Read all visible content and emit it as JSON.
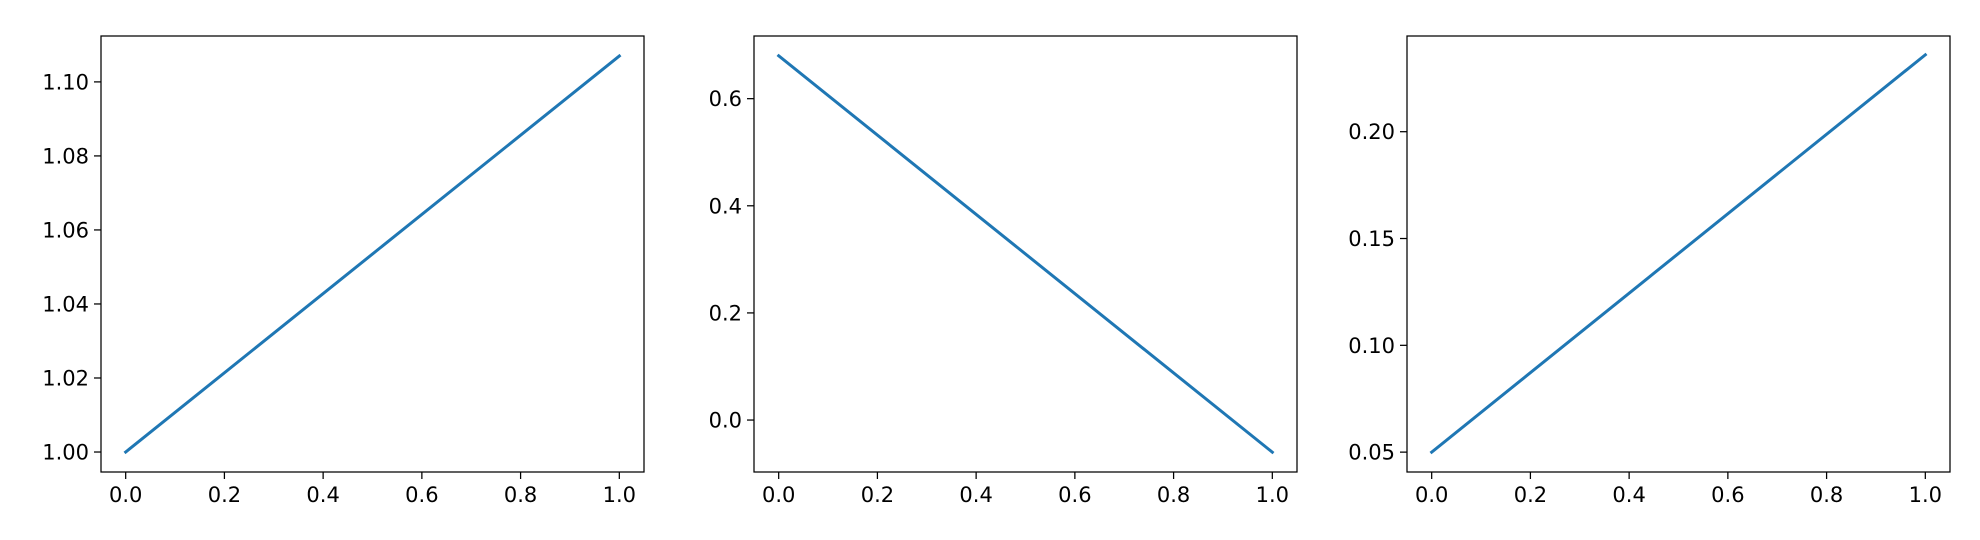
{
  "chart_data": [
    {
      "type": "line",
      "title": "",
      "xlabel": "",
      "ylabel": "",
      "xlim": [
        -0.05,
        1.05
      ],
      "ylim": [
        0.9946,
        1.1124
      ],
      "xticks": [
        0.0,
        0.2,
        0.4,
        0.6,
        0.8,
        1.0
      ],
      "xtick_labels": [
        "0.0",
        "0.2",
        "0.4",
        "0.6",
        "0.8",
        "1.0"
      ],
      "yticks": [
        1.0,
        1.02,
        1.04,
        1.06,
        1.08,
        1.1
      ],
      "ytick_labels": [
        "1.00",
        "1.02",
        "1.04",
        "1.06",
        "1.08",
        "1.10"
      ],
      "grid": false,
      "series": [
        {
          "x": [
            0.0,
            1.0
          ],
          "y": [
            1.0,
            1.107
          ],
          "color": "#1f77b4"
        }
      ]
    },
    {
      "type": "line",
      "title": "",
      "xlabel": "",
      "ylabel": "",
      "xlim": [
        -0.05,
        1.05
      ],
      "ylim": [
        -0.097,
        0.717
      ],
      "xticks": [
        0.0,
        0.2,
        0.4,
        0.6,
        0.8,
        1.0
      ],
      "xtick_labels": [
        "0.0",
        "0.2",
        "0.4",
        "0.6",
        "0.8",
        "1.0"
      ],
      "yticks": [
        0.0,
        0.2,
        0.4,
        0.6
      ],
      "ytick_labels": [
        "0.0",
        "0.2",
        "0.4",
        "0.6"
      ],
      "grid": false,
      "series": [
        {
          "x": [
            0.0,
            1.0
          ],
          "y": [
            0.68,
            -0.06
          ],
          "color": "#1f77b4"
        }
      ]
    },
    {
      "type": "line",
      "title": "",
      "xlabel": "",
      "ylabel": "",
      "xlim": [
        -0.05,
        1.05
      ],
      "ylim": [
        0.0407,
        0.2448
      ],
      "xticks": [
        0.0,
        0.2,
        0.4,
        0.6,
        0.8,
        1.0
      ],
      "xtick_labels": [
        "0.0",
        "0.2",
        "0.4",
        "0.6",
        "0.8",
        "1.0"
      ],
      "yticks": [
        0.05,
        0.1,
        0.15,
        0.2
      ],
      "ytick_labels": [
        "0.05",
        "0.10",
        "0.15",
        "0.20"
      ],
      "grid": false,
      "series": [
        {
          "x": [
            0.0,
            1.0
          ],
          "y": [
            0.05,
            0.236
          ],
          "color": "#1f77b4"
        }
      ]
    }
  ]
}
